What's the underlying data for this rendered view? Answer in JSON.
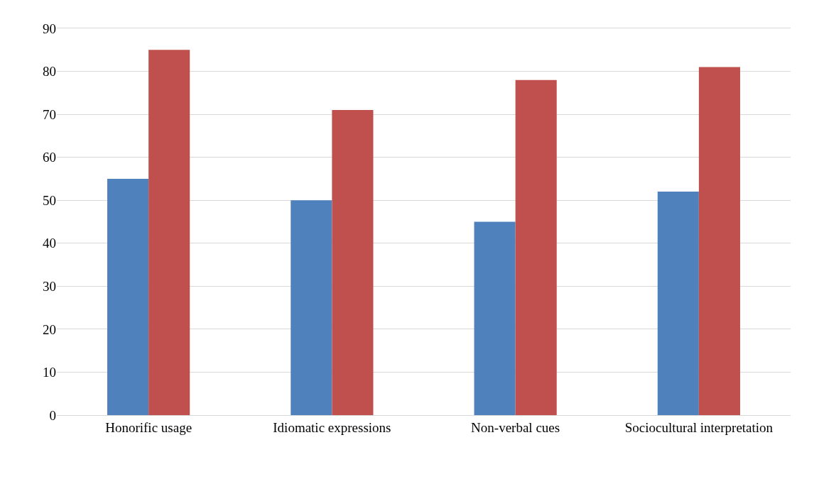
{
  "chart_data": {
    "type": "bar",
    "categories": [
      "Honorific usage",
      "Idiomatic expressions",
      "Non-verbal cues",
      "Sociocultural interpretation"
    ],
    "series": [
      {
        "color": "#4f81bd",
        "values": [
          55,
          50,
          45,
          52
        ]
      },
      {
        "color": "#c0504d",
        "values": [
          85,
          71,
          78,
          81
        ]
      }
    ],
    "ylim": [
      0,
      90
    ],
    "yticks": [
      0,
      10,
      20,
      30,
      40,
      50,
      60,
      70,
      80,
      90
    ],
    "grid": "y"
  }
}
